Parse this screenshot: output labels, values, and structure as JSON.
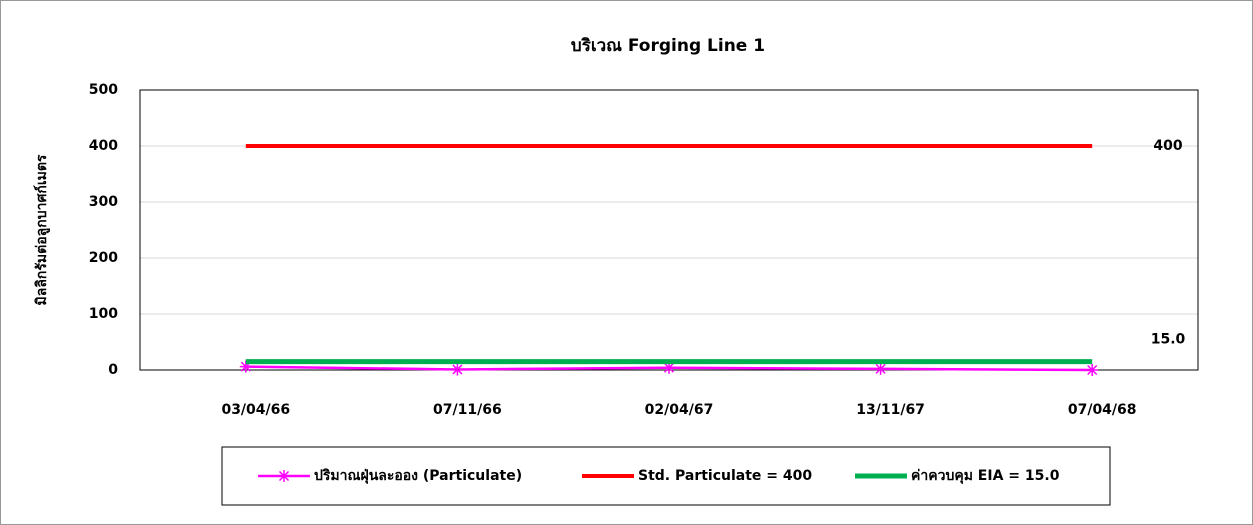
{
  "chart_data": {
    "type": "line",
    "title": "บริเวณ Forging Line 1",
    "y_label": "มิลลิกรัมต่อลูกบาศก์เมตร",
    "categories": [
      "03/04/66",
      "07/11/66",
      "02/04/67",
      "13/11/67",
      "07/04/68"
    ],
    "series": [
      {
        "name": "ปริมาณฝุ่นละออง (Particulate)",
        "color": "#ff00ff",
        "marker": "asterisk",
        "values": [
          6,
          1,
          4,
          2,
          0
        ]
      },
      {
        "name": "Std. Particulate = 400",
        "color": "#ff0000",
        "values": [
          400,
          400,
          400,
          400,
          400
        ]
      },
      {
        "name": "ค่าควบคุม EIA = 15.0",
        "color": "#00b050",
        "values": [
          15,
          15,
          15,
          15,
          15
        ]
      }
    ],
    "annotations": [
      {
        "value": 400,
        "label": "400"
      },
      {
        "value": 15,
        "label": "15.0"
      }
    ],
    "ylim": [
      0,
      500
    ],
    "yticks": [
      0,
      100,
      200,
      300,
      400,
      500
    ],
    "grid": true,
    "legend": "bottom"
  }
}
